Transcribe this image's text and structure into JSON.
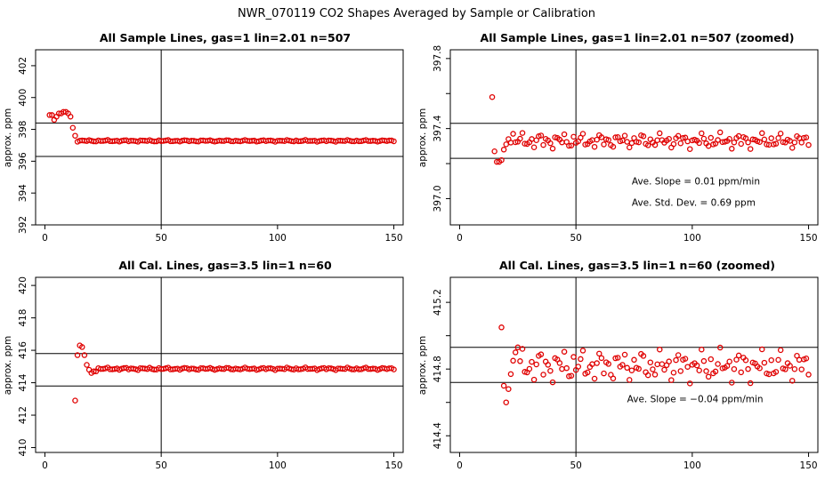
{
  "figure": {
    "title": "NWR_070119  CO2 Shapes Averaged by Sample or Calibration"
  },
  "chart_data": [
    {
      "type": "scatter",
      "title": "All Sample Lines, gas=1 lin=2.01 n=507",
      "xlabel": "",
      "ylabel": "approx. ppm",
      "xlim": [
        -4,
        154
      ],
      "ylim": [
        392,
        403
      ],
      "xticks": [
        0,
        50,
        100,
        150
      ],
      "yticks": [
        392,
        394,
        396,
        398,
        400,
        402
      ],
      "vline": 50,
      "hlines": [
        398.4,
        396.3
      ],
      "color": "#e00000",
      "segments": [
        {
          "x": [
            2,
            3,
            4,
            5,
            6,
            7,
            8,
            9,
            10,
            11
          ],
          "y": [
            398.9,
            398.9,
            398.6,
            398.8,
            399.0,
            399.0,
            399.1,
            399.1,
            399.0,
            398.8
          ]
        },
        {
          "x": [
            12,
            13
          ],
          "y": [
            398.1,
            397.6
          ]
        },
        {
          "start": 14,
          "end": 150,
          "mean": 397.28,
          "amp": 0.05
        }
      ],
      "annotations": []
    },
    {
      "type": "scatter",
      "title": "All Sample Lines, gas=1 lin=2.01 n=507 (zoomed)",
      "xlabel": "",
      "ylabel": "approx. ppm",
      "xlim": [
        -4,
        154
      ],
      "ylim": [
        396.85,
        397.85
      ],
      "xticks": [
        0,
        50,
        100,
        150
      ],
      "yticks": [
        397.0,
        397.2,
        397.4,
        397.6,
        397.8
      ],
      "ytick_labels": [
        "397.0",
        "",
        "397.4",
        "",
        "397.8"
      ],
      "vline": 50,
      "hlines": [
        397.43,
        397.23
      ],
      "color": "#e00000",
      "segments": [
        {
          "x": [
            14,
            15,
            16,
            17,
            18,
            19,
            20,
            21,
            22,
            23
          ],
          "y": [
            397.58,
            397.27,
            397.21,
            397.21,
            397.22,
            397.28,
            397.31,
            397.34,
            397.32,
            397.37
          ]
        },
        {
          "start": 24,
          "end": 150,
          "mean": 397.33,
          "amp": 0.04
        }
      ],
      "annotations": [
        {
          "x": 74,
          "y": 397.08,
          "text": "Ave. Slope =  0.01  ppm/min"
        },
        {
          "x": 74,
          "y": 396.96,
          "text": "Ave. Std. Dev. =  0.69  ppm"
        }
      ]
    },
    {
      "type": "scatter",
      "title": "All Cal. Lines, gas=3.5 lin=1 n=60",
      "xlabel": "",
      "ylabel": "approx. ppm",
      "xlim": [
        -4,
        154
      ],
      "ylim": [
        409.7,
        420.5
      ],
      "xticks": [
        0,
        50,
        100,
        150
      ],
      "yticks": [
        410,
        412,
        414,
        416,
        418,
        420
      ],
      "vline": 50,
      "hlines": [
        415.8,
        413.8
      ],
      "color": "#e00000",
      "segments": [
        {
          "x": [
            13,
            14,
            15,
            16,
            17,
            18,
            19,
            20,
            21,
            22
          ],
          "y": [
            412.9,
            415.7,
            416.3,
            416.2,
            415.7,
            415.1,
            414.8,
            414.6,
            414.7,
            414.7
          ]
        },
        {
          "start": 23,
          "end": 150,
          "mean": 414.86,
          "amp": 0.07
        }
      ],
      "annotations": []
    },
    {
      "type": "scatter",
      "title": "All Cal. Lines, gas=3.5 lin=1 n=60 (zoomed)",
      "xlabel": "",
      "ylabel": "approx. ppm",
      "xlim": [
        -4,
        154
      ],
      "ylim": [
        414.3,
        415.35
      ],
      "xticks": [
        0,
        50,
        100,
        150
      ],
      "yticks": [
        414.4,
        414.6,
        414.8,
        415.0,
        415.2
      ],
      "ytick_labels": [
        "414.4",
        "",
        "414.8",
        "",
        "415.2"
      ],
      "vline": 50,
      "hlines": [
        414.93,
        414.72
      ],
      "color": "#e00000",
      "segments": [
        {
          "x": [
            18,
            19,
            20,
            21,
            22,
            23,
            24,
            25
          ],
          "y": [
            415.05,
            414.7,
            414.6,
            414.68,
            414.77,
            414.85,
            414.9,
            414.93
          ]
        },
        {
          "start": 26,
          "end": 150,
          "mean": 414.82,
          "amp": 0.09
        }
      ],
      "annotations": [
        {
          "x": 72,
          "y": 414.6,
          "text": "Ave. Slope =  −0.04  ppm/min"
        }
      ]
    }
  ]
}
